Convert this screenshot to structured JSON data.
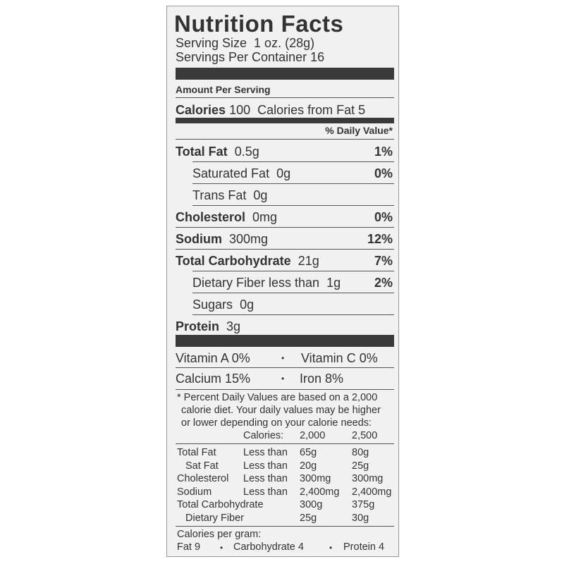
{
  "title": "Nutrition Facts",
  "serving_size": "Serving Size  1 oz. (28g)",
  "servings_per_container": "Servings Per Container 16",
  "amount_per_serving": "Amount Per Serving",
  "calories": {
    "label": "Calories",
    "value": "100",
    "from_fat": "Calories from Fat 5"
  },
  "daily_value_header": "% Daily Value*",
  "nutrients": [
    {
      "label": "Total Fat",
      "amount": "0.5g",
      "dv": "1%",
      "bold": true,
      "indent": false
    },
    {
      "label": "Saturated Fat",
      "amount": "0g",
      "dv": "0%",
      "bold": false,
      "indent": true
    },
    {
      "label": "Trans Fat",
      "amount": "0g",
      "dv": "",
      "bold": false,
      "indent": true
    },
    {
      "label": "Cholesterol",
      "amount": "0mg",
      "dv": "0%",
      "bold": true,
      "indent": false
    },
    {
      "label": "Sodium",
      "amount": "300mg",
      "dv": "12%",
      "bold": true,
      "indent": false
    },
    {
      "label": "Total Carbohydrate",
      "amount": "21g",
      "dv": "7%",
      "bold": true,
      "indent": false
    },
    {
      "label": "Dietary Fiber less than",
      "amount": "1g",
      "dv": "2%",
      "bold": false,
      "indent": true
    },
    {
      "label": "Sugars",
      "amount": "0g",
      "dv": "",
      "bold": false,
      "indent": true
    },
    {
      "label": "Protein",
      "amount": "3g",
      "dv": "",
      "bold": true,
      "indent": false
    }
  ],
  "vitamins": [
    {
      "left": "Vitamin A  0%",
      "right": "Vitamin C  0%"
    },
    {
      "left": "Calcium  15%",
      "right": "Iron  8%"
    }
  ],
  "separator": "•",
  "footnote": [
    "* Percent Daily Values are based on a 2,000",
    "calorie diet. Your daily values may be higher",
    "or lower depending on your calorie needs:"
  ],
  "dv_table": {
    "header": [
      "",
      "Calories:",
      "2,000",
      "2,500"
    ],
    "rows": [
      [
        "Total Fat",
        "Less than",
        "65g",
        "80g"
      ],
      [
        "Sat Fat",
        "Less than",
        "20g",
        "25g"
      ],
      [
        "Cholesterol",
        "Less than",
        "300mg",
        "300mg"
      ],
      [
        "Sodium",
        "Less than",
        "2,400mg",
        "2,400mg"
      ],
      [
        "Total Carbohydrate",
        "",
        "300g",
        "375g"
      ],
      [
        "Dietary Fiber",
        "",
        "25g",
        "30g"
      ]
    ]
  },
  "calories_per_gram": {
    "label": "Calories per gram:",
    "fat": "Fat 9",
    "carbohydrate": "Carbohydrate 4",
    "protein": "Protein 4"
  }
}
